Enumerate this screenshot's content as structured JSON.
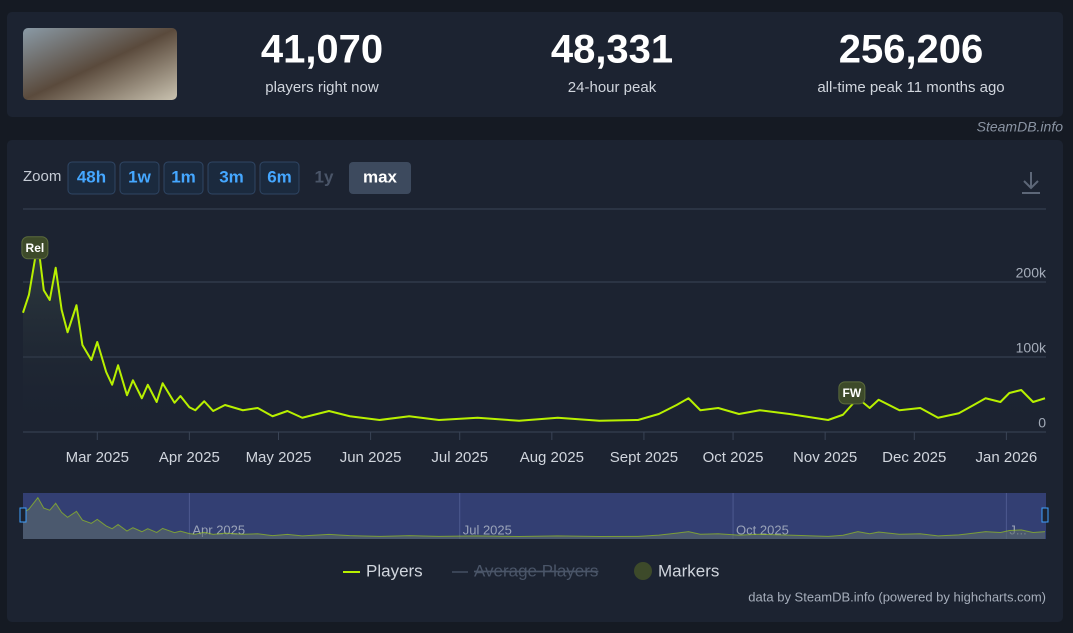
{
  "header": {
    "stats": [
      {
        "value": "41,070",
        "label": "players right now"
      },
      {
        "value": "48,331",
        "label": "24-hour peak"
      },
      {
        "value": "256,206",
        "label": "all-time peak 11 months ago"
      }
    ],
    "source": "SteamDB.info"
  },
  "zoom": {
    "label": "Zoom",
    "buttons": [
      "48h",
      "1w",
      "1m",
      "3m",
      "6m",
      "1y",
      "max"
    ]
  },
  "credit": "data by SteamDB.info (powered by highcharts.com)",
  "chart_data": {
    "type": "line",
    "x": [
      0,
      2,
      5,
      7,
      9,
      11,
      13,
      15,
      18,
      20,
      23,
      25,
      28,
      30,
      32,
      35,
      37,
      40,
      42,
      45,
      47,
      51,
      53,
      56,
      58,
      61,
      64,
      68,
      74,
      79,
      84,
      89,
      94,
      103,
      110,
      120,
      130,
      140,
      153,
      167,
      180,
      194,
      207,
      214,
      220,
      224,
      228,
      234,
      241,
      248,
      258,
      271,
      276,
      281,
      285,
      288,
      295,
      302,
      308,
      315,
      320,
      324,
      329,
      332,
      336,
      340,
      344
    ],
    "series": [
      {
        "name": "Players",
        "color": "#b8f000",
        "values": [
          159000,
          183000,
          253000,
          189000,
          176000,
          219000,
          163000,
          133000,
          169000,
          116000,
          96000,
          120000,
          80000,
          63000,
          89000,
          49000,
          69000,
          45000,
          63000,
          40000,
          65000,
          39000,
          48000,
          33000,
          29000,
          41000,
          28000,
          36000,
          29000,
          32000,
          21000,
          28000,
          19000,
          28000,
          21000,
          16000,
          21000,
          16000,
          19000,
          15000,
          19000,
          15000,
          16000,
          24000,
          36000,
          45000,
          29000,
          32000,
          24000,
          29000,
          24000,
          16000,
          23000,
          45000,
          32000,
          43000,
          29000,
          32000,
          19000,
          25000,
          36000,
          45000,
          40000,
          52000,
          56000,
          40000,
          45000
        ]
      }
    ],
    "legend_items": [
      "Average Players",
      "Markers"
    ],
    "markers": [
      {
        "label": "Rel",
        "x": 4
      },
      {
        "label": "FW",
        "x": 279
      }
    ],
    "xlim": [
      0,
      344
    ],
    "xticks": [
      {
        "value": 25,
        "label": "Mar 2025"
      },
      {
        "value": 56,
        "label": "Apr 2025"
      },
      {
        "value": 86,
        "label": "May 2025"
      },
      {
        "value": 117,
        "label": "Jun 2025"
      },
      {
        "value": 147,
        "label": "Jul 2025"
      },
      {
        "value": 178,
        "label": "Aug 2025"
      },
      {
        "value": 209,
        "label": "Sept 2025"
      },
      {
        "value": 239,
        "label": "Oct 2025"
      },
      {
        "value": 270,
        "label": "Nov 2025"
      },
      {
        "value": 300,
        "label": "Dec 2025"
      },
      {
        "value": 331,
        "label": "Jan 2026"
      }
    ],
    "navigator_xticks": [
      {
        "value": 56,
        "label": "Apr 2025"
      },
      {
        "value": 147,
        "label": "Jul 2025"
      },
      {
        "value": 239,
        "label": "Oct 2025"
      },
      {
        "value": 331,
        "label": "J..."
      }
    ],
    "ylim": [
      0,
      296000
    ],
    "yticks": [
      0,
      {
        "value": 100000,
        "label": "100k"
      },
      {
        "value": 200000,
        "label": "200k"
      }
    ],
    "grid": true
  }
}
